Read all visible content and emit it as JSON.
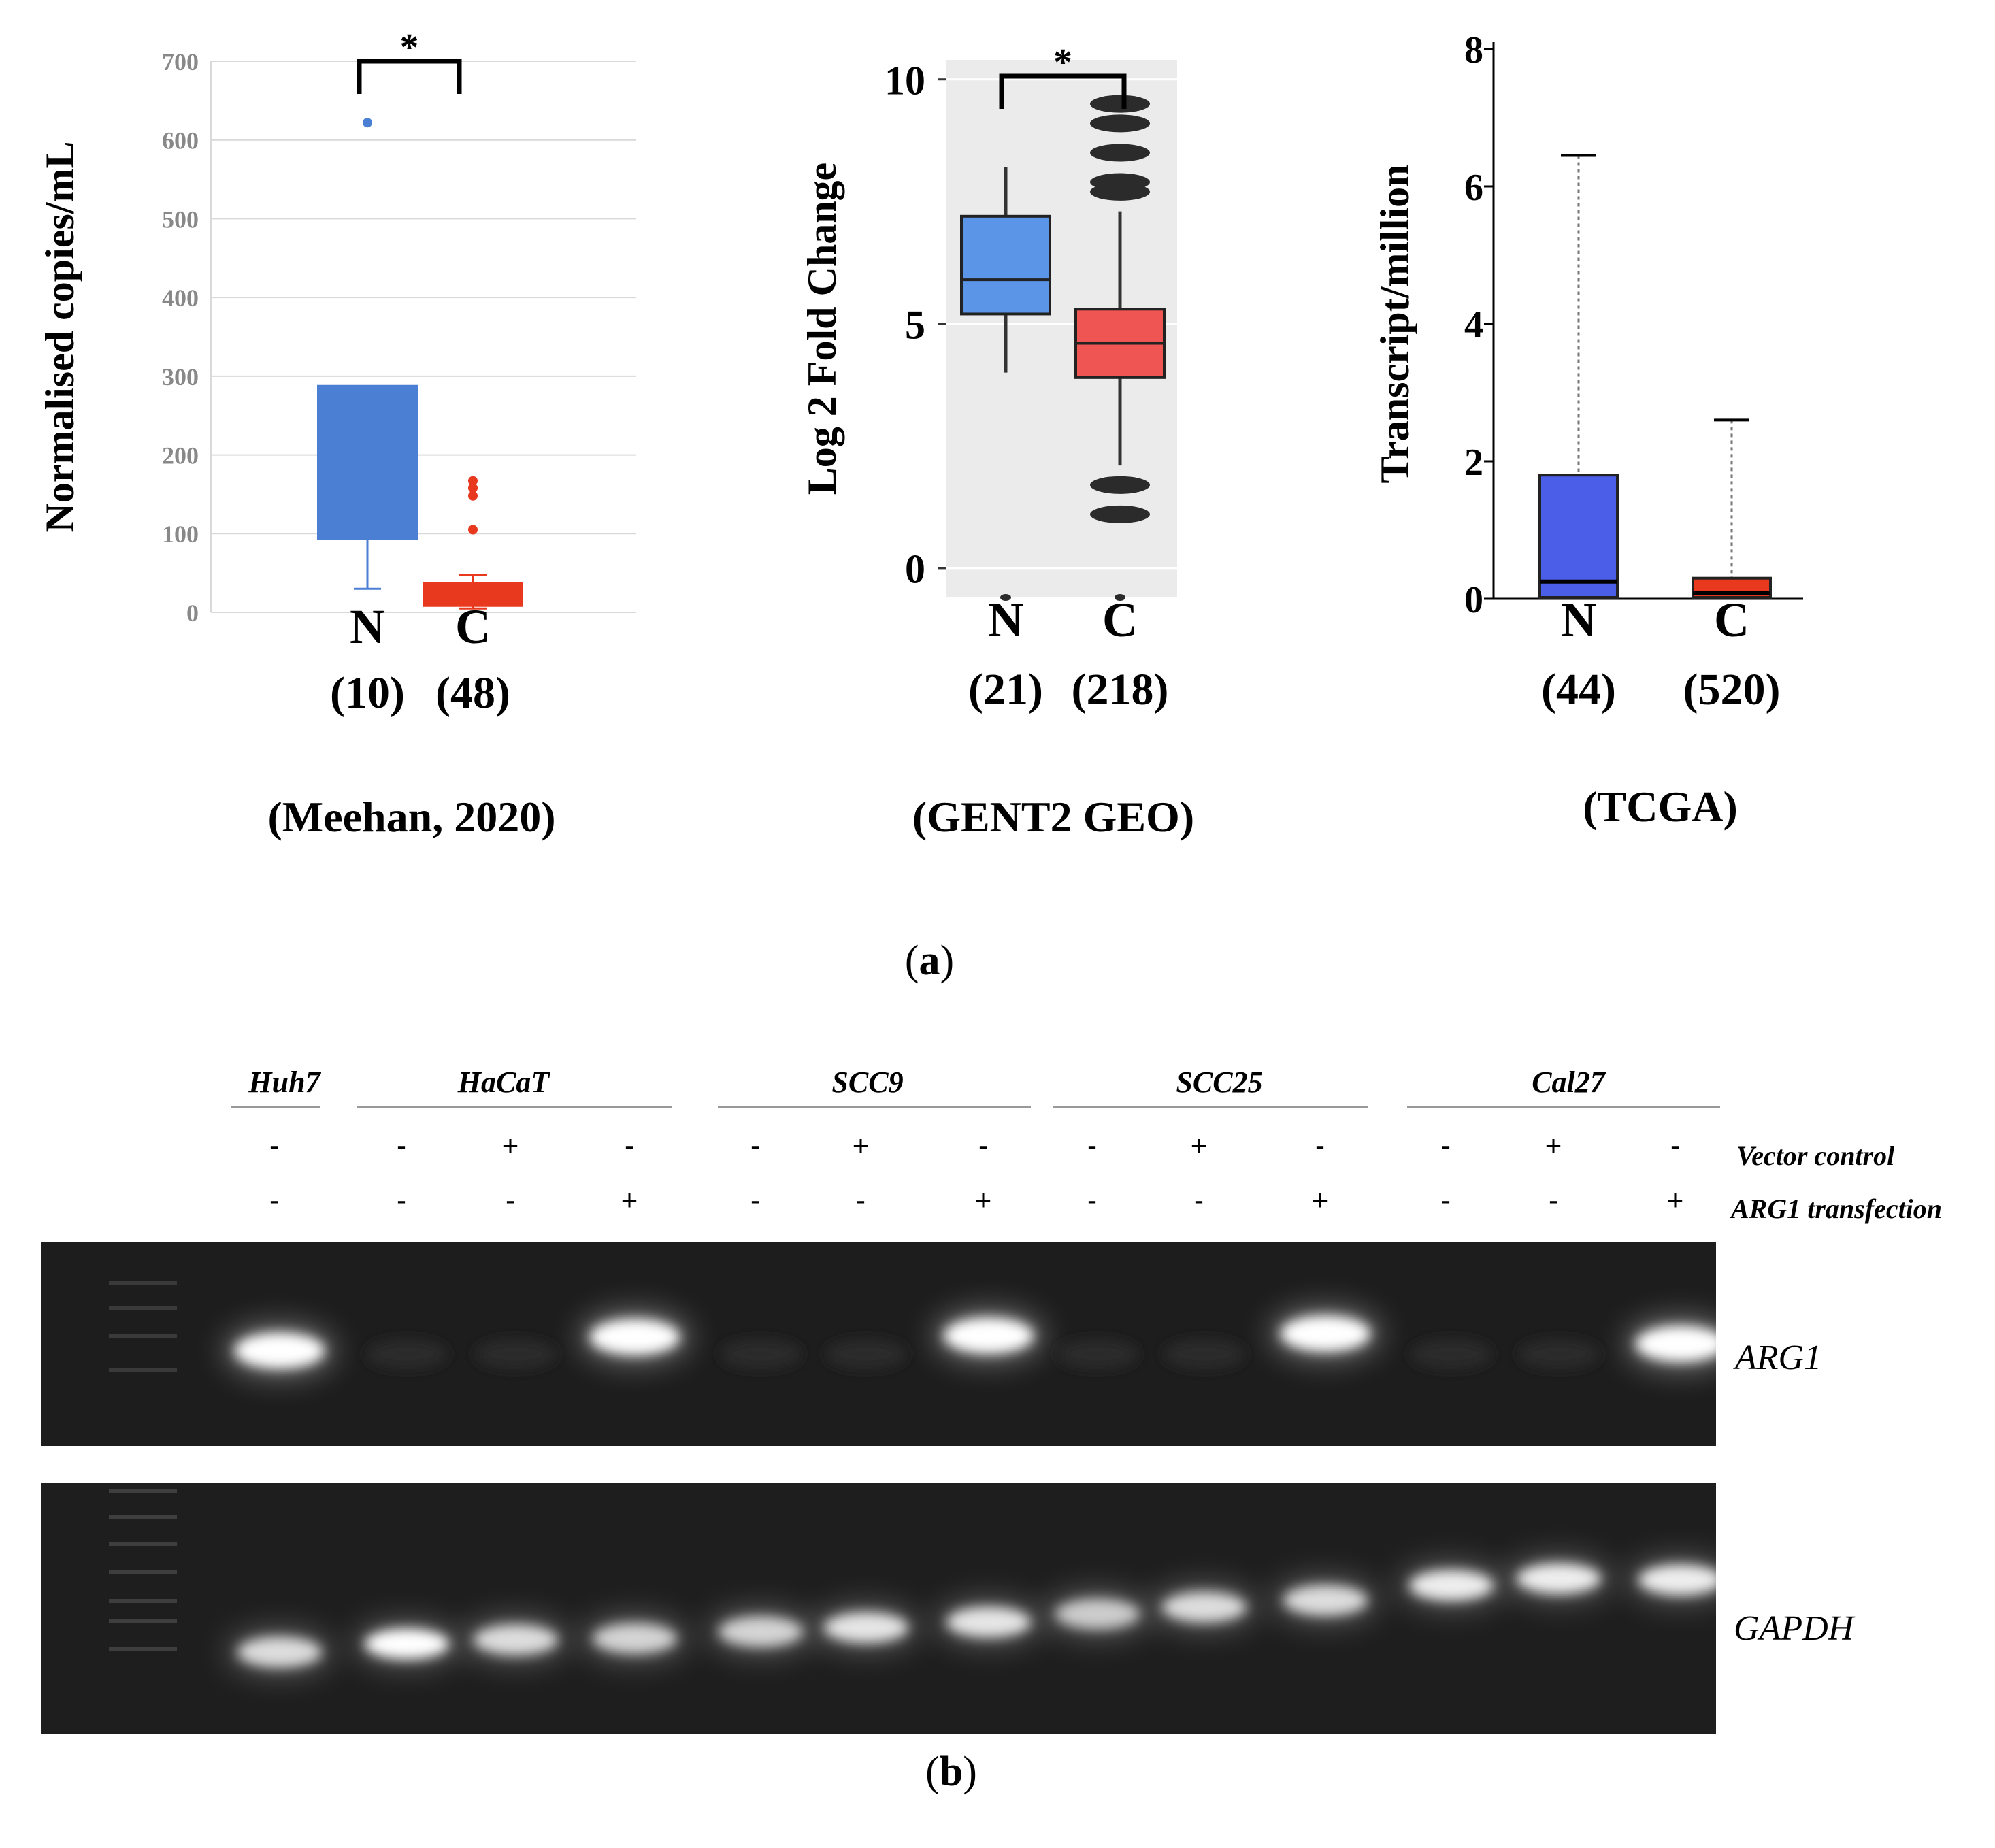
{
  "panel_a_label": "a",
  "panel_b_label": "b",
  "chart_data": [
    {
      "type": "box",
      "source": "(Meehan, 2020)",
      "ylabel": "Normalised copies/mL",
      "ylim": [
        0,
        700
      ],
      "yticks": [
        "0",
        "100",
        "200",
        "300",
        "400",
        "500",
        "600",
        "700"
      ],
      "grid": true,
      "significance": "*",
      "colors": {
        "N": "#4a7fd4",
        "C": "#e8391e"
      },
      "groups": [
        {
          "label": "N",
          "n": "(10)",
          "whisker_low": 30,
          "q1": 93,
          "median": 93,
          "q3": 288,
          "whisker_high": 288,
          "outliers": [
            622
          ]
        },
        {
          "label": "C",
          "n": "(48)",
          "whisker_low": 5,
          "q1": 8,
          "median": 22,
          "q3": 38,
          "whisker_high": 48,
          "outliers": [
            105,
            148,
            158,
            167
          ]
        }
      ]
    },
    {
      "type": "box",
      "source": "(GENT2 GEO)",
      "ylabel": "Log 2 Fold Change",
      "ylim": [
        -0.6,
        10.4
      ],
      "yticks": [
        "0",
        "5",
        "10"
      ],
      "grid": true,
      "significance": "*",
      "colors": {
        "N": "#5b95e8",
        "C": "#ef5552"
      },
      "groups": [
        {
          "label": "N",
          "n": "(21)",
          "whisker_low": 4.0,
          "q1": 5.2,
          "median": 5.9,
          "q3": 7.2,
          "whisker_high": 8.2,
          "outliers": [
            -0.6
          ]
        },
        {
          "label": "C",
          "n": "(218)",
          "whisker_low": 2.1,
          "q1": 3.9,
          "median": 4.6,
          "q3": 5.3,
          "whisker_high": 7.3,
          "outliers": [
            -0.6,
            1.1,
            1.7,
            7.7,
            7.9,
            8.5,
            9.1,
            9.5
          ]
        }
      ]
    },
    {
      "type": "box",
      "source": "(TCGA)",
      "ylabel": "Transcript/million",
      "ylim": [
        0,
        8
      ],
      "yticks": [
        "0",
        "2",
        "4",
        "6",
        "8"
      ],
      "grid": false,
      "significance": "",
      "colors": {
        "N": "#4a5ee8",
        "C": "#e8391e"
      },
      "groups": [
        {
          "label": "N",
          "n": "(44)",
          "whisker_low": 0,
          "q1": 0.02,
          "median": 0.25,
          "q3": 1.8,
          "whisker_high": 6.45,
          "outliers": []
        },
        {
          "label": "C",
          "n": "(520)",
          "whisker_low": 0,
          "q1": 0.02,
          "median": 0.08,
          "q3": 0.3,
          "whisker_high": 2.6,
          "outliers": []
        }
      ]
    }
  ],
  "gel": {
    "cell_lines": [
      "Huh7",
      "HaCaT",
      "SCC9",
      "SCC25",
      "Cal27"
    ],
    "row_labels": [
      "Vector control",
      "ARG1 transfection"
    ],
    "vector_control": [
      "-",
      "-",
      "+",
      "-",
      "-",
      "+",
      "-",
      "-",
      "+",
      "-",
      "-",
      "+",
      "-"
    ],
    "arg1_transfection": [
      "-",
      "-",
      "-",
      "+",
      "-",
      "-",
      "+",
      "-",
      "-",
      "+",
      "-",
      "-",
      "+"
    ],
    "genes": [
      "ARG1",
      "GAPDH"
    ],
    "arg1_band_intensity": [
      1.0,
      0,
      0,
      1.0,
      0,
      0,
      1.0,
      0,
      0,
      1.0,
      0,
      0,
      1.0
    ],
    "gapdh_band_intensity": [
      0.8,
      1.0,
      0.8,
      0.75,
      0.75,
      0.85,
      0.85,
      0.7,
      0.8,
      0.8,
      0.9,
      0.9,
      0.9
    ]
  }
}
